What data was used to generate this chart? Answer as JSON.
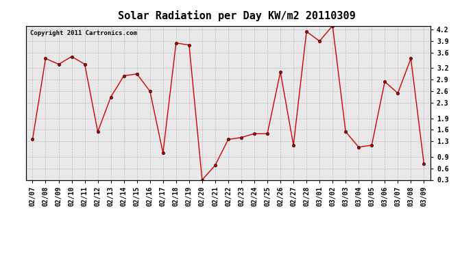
{
  "title": "Solar Radiation per Day KW/m2 20110309",
  "copyright": "Copyright 2011 Cartronics.com",
  "dates": [
    "02/07",
    "02/08",
    "02/09",
    "02/10",
    "02/11",
    "02/12",
    "02/13",
    "02/14",
    "02/15",
    "02/16",
    "02/17",
    "02/18",
    "02/19",
    "02/20",
    "02/21",
    "02/22",
    "02/23",
    "02/24",
    "02/25",
    "02/26",
    "02/27",
    "02/28",
    "03/01",
    "03/02",
    "03/03",
    "03/04",
    "03/05",
    "03/06",
    "03/07",
    "03/08",
    "03/09"
  ],
  "values": [
    1.35,
    3.45,
    3.3,
    3.5,
    3.3,
    1.55,
    2.45,
    3.0,
    3.05,
    2.6,
    1.0,
    3.85,
    3.8,
    0.3,
    0.68,
    1.35,
    1.4,
    1.5,
    1.5,
    3.1,
    1.2,
    4.15,
    3.9,
    4.3,
    1.55,
    1.15,
    1.2,
    2.85,
    2.55,
    3.45,
    0.72
  ],
  "line_color": "#cc0000",
  "marker": "o",
  "markersize": 3,
  "ylim": [
    0.3,
    4.3
  ],
  "yticks": [
    0.3,
    0.6,
    0.9,
    1.3,
    1.6,
    1.9,
    2.3,
    2.6,
    2.9,
    3.2,
    3.6,
    3.9,
    4.2
  ],
  "grid_color": "#bbbbbb",
  "bg_color": "#ffffff",
  "plot_bg_color": "#e8e8e8",
  "title_fontsize": 11,
  "tick_fontsize": 7,
  "copyright_fontsize": 6.5
}
